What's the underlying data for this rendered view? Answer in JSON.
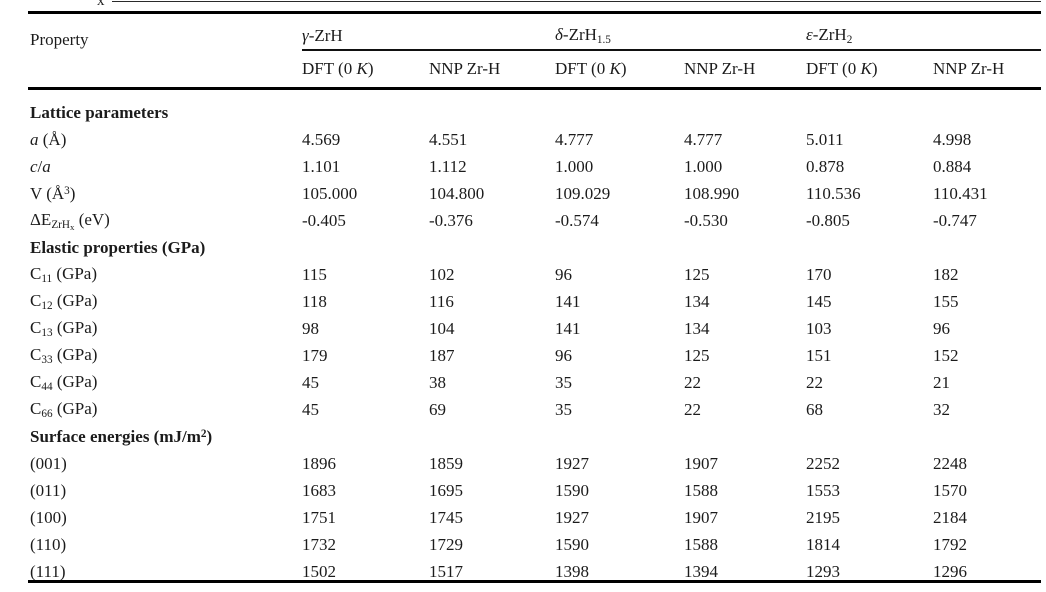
{
  "page": {
    "caption_fragment": "x"
  },
  "table": {
    "property_header": "Property",
    "groups": [
      {
        "title": [
          {
            "t": "γ",
            "i": 1
          },
          {
            "t": "-ZrH"
          }
        ],
        "columns": [
          [
            {
              "t": "DFT (0 "
            },
            {
              "t": "K",
              "i": 1
            },
            {
              "t": ")"
            }
          ],
          [
            {
              "t": "NNP Zr-H"
            }
          ]
        ]
      },
      {
        "title": [
          {
            "t": "δ",
            "i": 1
          },
          {
            "t": "-ZrH"
          },
          {
            "t": "1.5",
            "sub": 1
          }
        ],
        "columns": [
          [
            {
              "t": "DFT (0 "
            },
            {
              "t": "K",
              "i": 1
            },
            {
              "t": ")"
            }
          ],
          [
            {
              "t": "NNP Zr-H"
            }
          ]
        ]
      },
      {
        "title": [
          {
            "t": "ε",
            "i": 1
          },
          {
            "t": "-ZrH"
          },
          {
            "t": "2",
            "sub": 1
          }
        ],
        "columns": [
          [
            {
              "t": "DFT (0 "
            },
            {
              "t": "K",
              "i": 1
            },
            {
              "t": ")"
            }
          ],
          [
            {
              "t": "NNP Zr-H"
            }
          ]
        ]
      }
    ],
    "rows": [
      {
        "type": "section",
        "label": [
          {
            "t": "Lattice parameters"
          }
        ],
        "values": []
      },
      {
        "type": "data",
        "label": [
          {
            "t": "a",
            "i": 1
          },
          {
            "t": " (Å)"
          }
        ],
        "values": [
          "4.569",
          "4.551",
          "4.777",
          "4.777",
          "5.011",
          "4.998"
        ]
      },
      {
        "type": "data",
        "label": [
          {
            "t": "c",
            "i": 1
          },
          {
            "t": "/"
          },
          {
            "t": "a",
            "i": 1
          }
        ],
        "values": [
          "1.101",
          "1.112",
          "1.000",
          "1.000",
          "0.878",
          "0.884"
        ]
      },
      {
        "type": "data",
        "label": [
          {
            "t": "V (Å"
          },
          {
            "t": "3",
            "sup": 1
          },
          {
            "t": ")"
          }
        ],
        "values": [
          "105.000",
          "104.800",
          "109.029",
          "108.990",
          "110.536",
          "110.431"
        ]
      },
      {
        "type": "data",
        "label": [
          {
            "t": "ΔE"
          },
          {
            "t": "ZrH",
            "sub": 1
          },
          {
            "t": "x",
            "ss": 1
          },
          {
            "t": " (eV)"
          }
        ],
        "values": [
          "-0.405",
          "-0.376",
          "-0.574",
          "-0.530",
          "-0.805",
          "-0.747"
        ]
      },
      {
        "type": "section",
        "label": [
          {
            "t": "Elastic properties (GPa)"
          }
        ],
        "values": []
      },
      {
        "type": "data",
        "label": [
          {
            "t": "C"
          },
          {
            "t": "11",
            "sub": 1
          },
          {
            "t": " (GPa)"
          }
        ],
        "values": [
          "115",
          "102",
          "96",
          "125",
          "170",
          "182"
        ]
      },
      {
        "type": "data",
        "label": [
          {
            "t": "C"
          },
          {
            "t": "12",
            "sub": 1
          },
          {
            "t": " (GPa)"
          }
        ],
        "values": [
          "118",
          "116",
          "141",
          "134",
          "145",
          "155"
        ]
      },
      {
        "type": "data",
        "label": [
          {
            "t": "C"
          },
          {
            "t": "13",
            "sub": 1
          },
          {
            "t": " (GPa)"
          }
        ],
        "values": [
          "98",
          "104",
          "141",
          "134",
          "103",
          "96"
        ]
      },
      {
        "type": "data",
        "label": [
          {
            "t": "C"
          },
          {
            "t": "33",
            "sub": 1
          },
          {
            "t": " (GPa)"
          }
        ],
        "values": [
          "179",
          "187",
          "96",
          "125",
          "151",
          "152"
        ]
      },
      {
        "type": "data",
        "label": [
          {
            "t": "C"
          },
          {
            "t": "44",
            "sub": 1
          },
          {
            "t": " (GPa)"
          }
        ],
        "values": [
          "45",
          "38",
          "35",
          "22",
          "22",
          "21"
        ]
      },
      {
        "type": "data",
        "label": [
          {
            "t": "C"
          },
          {
            "t": "66",
            "sub": 1
          },
          {
            "t": " (GPa)"
          }
        ],
        "values": [
          "45",
          "69",
          "35",
          "22",
          "68",
          "32"
        ]
      },
      {
        "type": "section",
        "label": [
          {
            "t": "Surface energies (mJ/m"
          },
          {
            "t": "2",
            "sup": 1
          },
          {
            "t": ")"
          }
        ],
        "values": []
      },
      {
        "type": "data",
        "label": [
          {
            "t": "(001)"
          }
        ],
        "values": [
          "1896",
          "1859",
          "1927",
          "1907",
          "2252",
          "2248"
        ]
      },
      {
        "type": "data",
        "label": [
          {
            "t": "(011)"
          }
        ],
        "values": [
          "1683",
          "1695",
          "1590",
          "1588",
          "1553",
          "1570"
        ]
      },
      {
        "type": "data",
        "label": [
          {
            "t": "(100)"
          }
        ],
        "values": [
          "1751",
          "1745",
          "1927",
          "1907",
          "2195",
          "2184"
        ]
      },
      {
        "type": "data",
        "label": [
          {
            "t": "(110)"
          }
        ],
        "values": [
          "1732",
          "1729",
          "1590",
          "1588",
          "1814",
          "1792"
        ]
      },
      {
        "type": "data",
        "label": [
          {
            "t": "(111)"
          }
        ],
        "values": [
          "1502",
          "1517",
          "1398",
          "1394",
          "1293",
          "1296"
        ]
      }
    ]
  }
}
